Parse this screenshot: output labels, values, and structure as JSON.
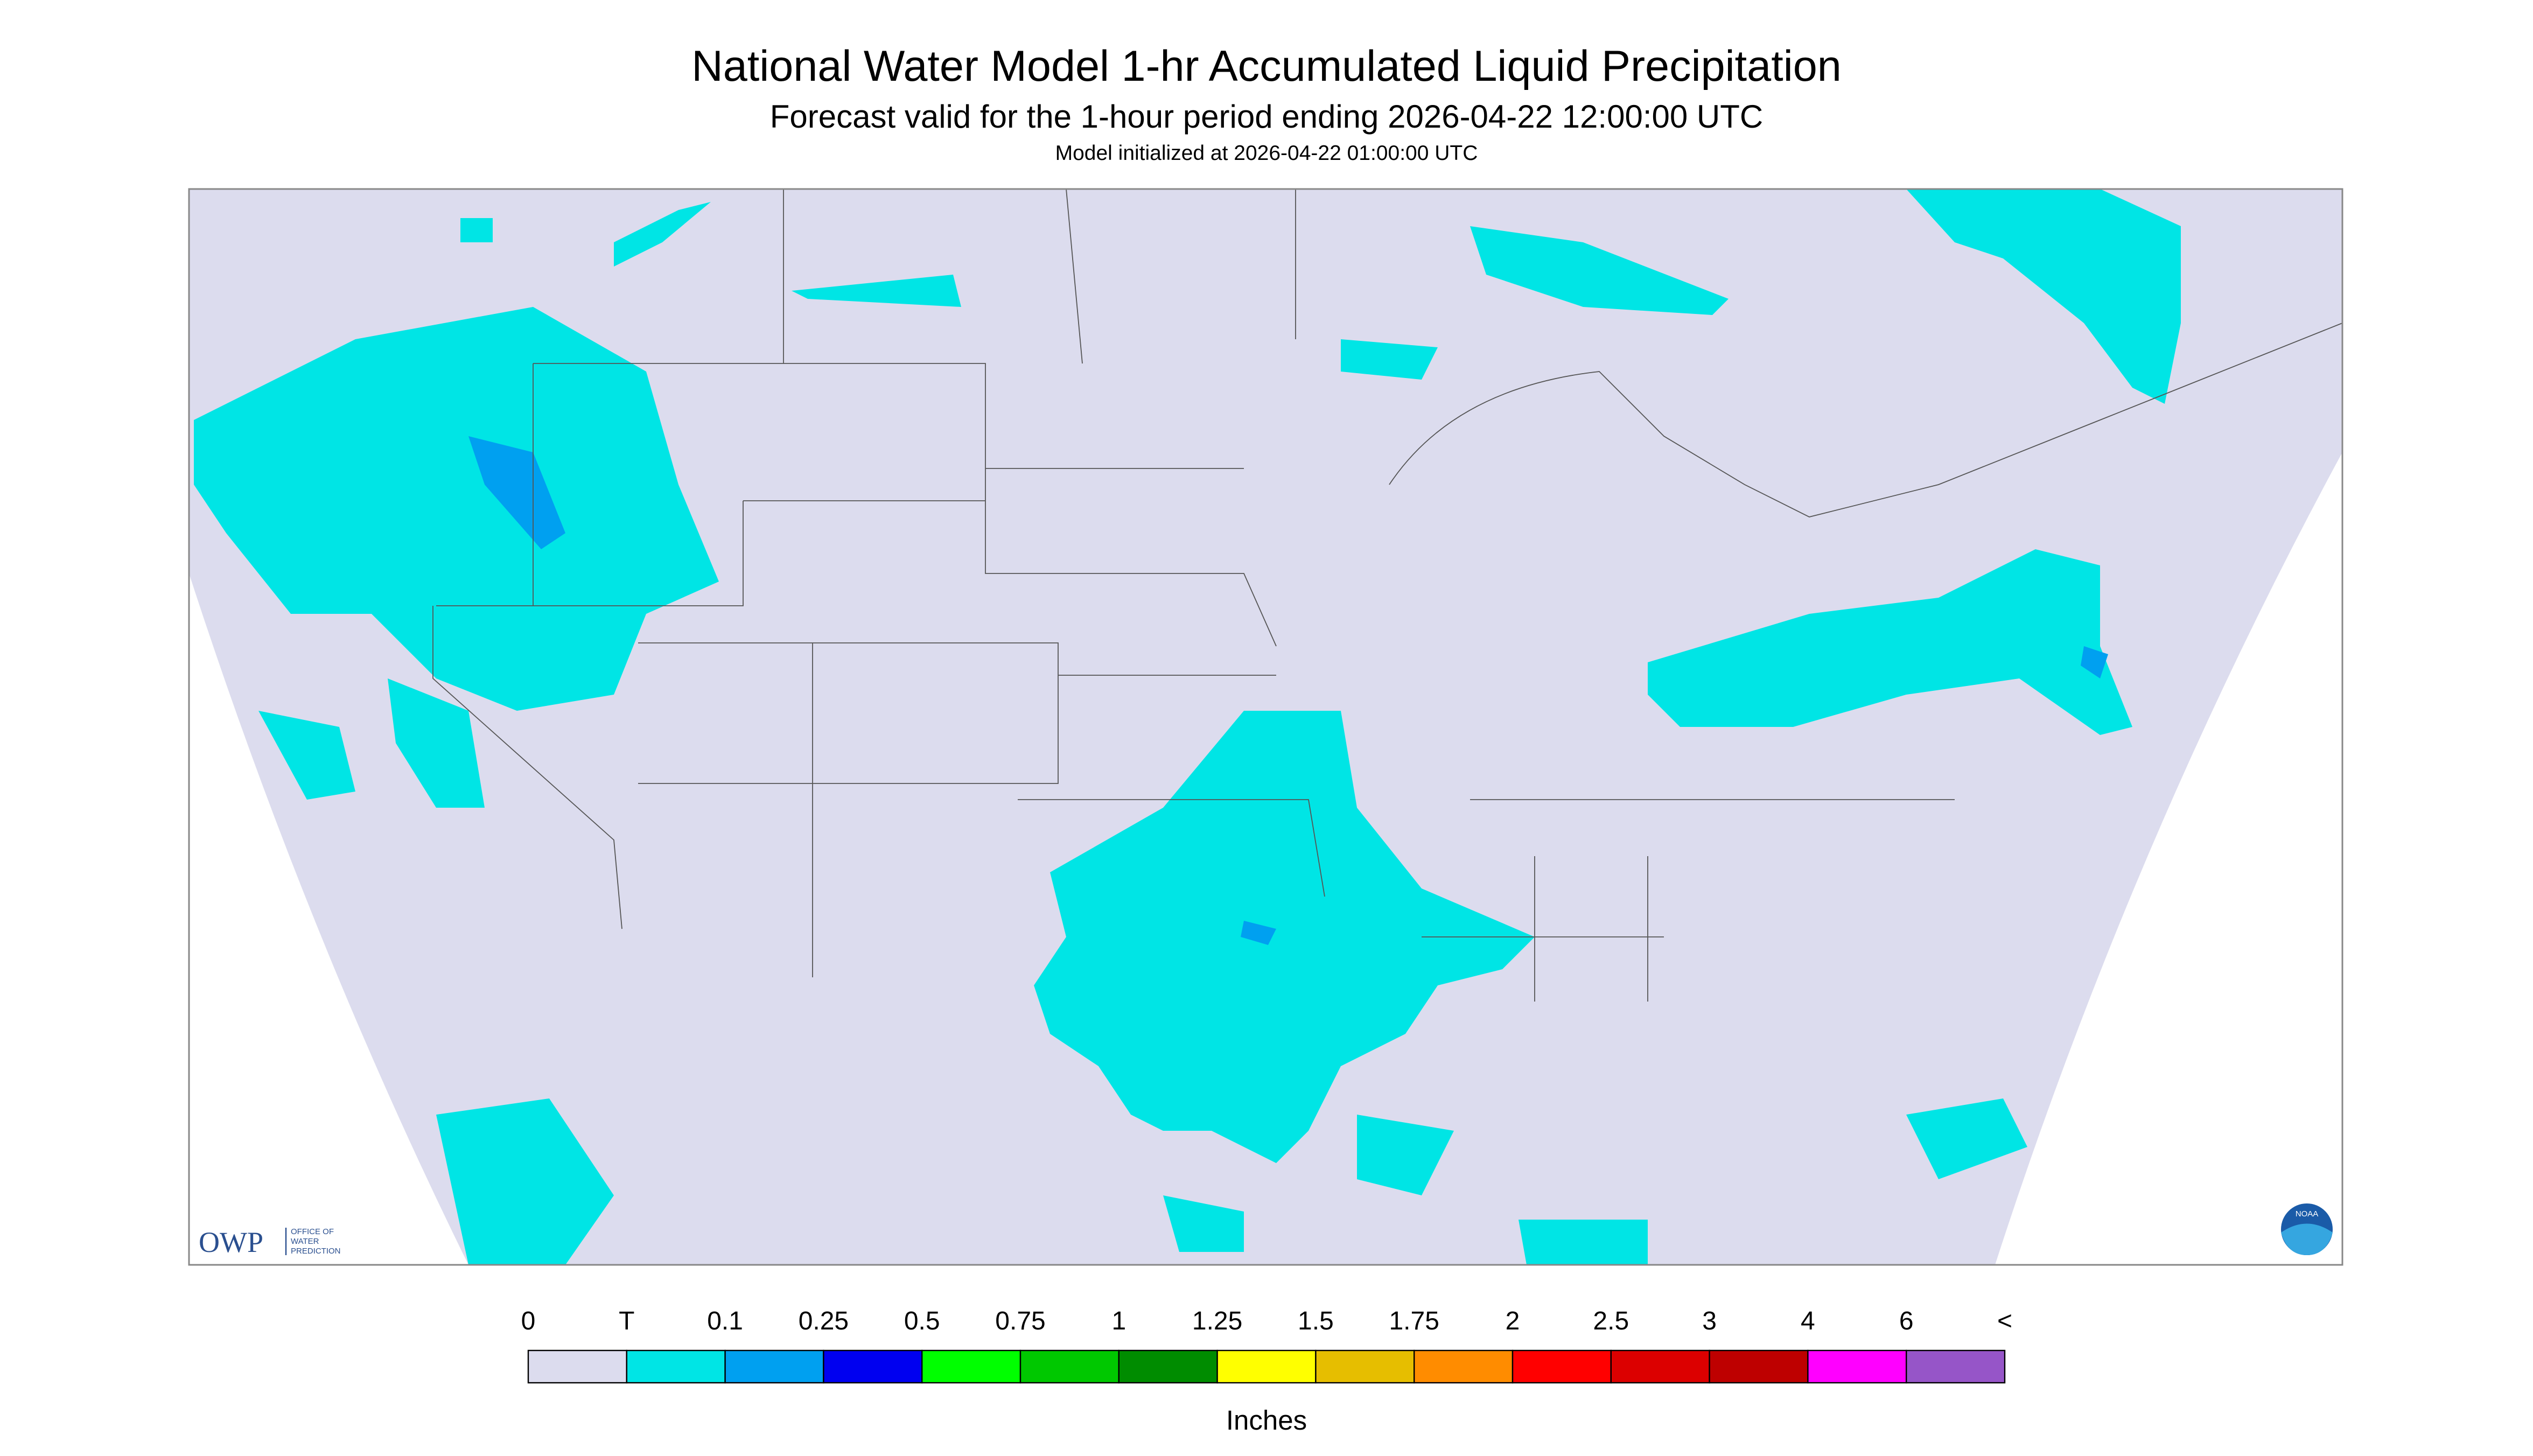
{
  "header": {
    "title": "National Water Model 1-hr Accumulated Liquid Precipitation",
    "subtitle": "Forecast valid for the 1-hour period ending 2026-04-22 12:00:00 UTC",
    "init": "Model initialized at 2026-04-22 01:00:00 UTC"
  },
  "logos": {
    "owp": "OWP",
    "owp_lines": [
      "OFFICE OF",
      "WATER",
      "PREDICTION"
    ],
    "noaa": "NOAA"
  },
  "legend": {
    "labels": [
      "0",
      "T",
      "0.1",
      "0.25",
      "0.5",
      "0.75",
      "1",
      "1.25",
      "1.5",
      "1.75",
      "2",
      "2.5",
      "3",
      "4",
      "6",
      "<"
    ],
    "colors": [
      "#dcdcee",
      "#00e5e5",
      "#00a0f0",
      "#0000f0",
      "#00ff00",
      "#00c800",
      "#008c00",
      "#ffff00",
      "#e6be00",
      "#ff8c00",
      "#ff0000",
      "#dc0000",
      "#be0000",
      "#ff00ff",
      "#9655c8"
    ],
    "unit": "Inches"
  }
}
